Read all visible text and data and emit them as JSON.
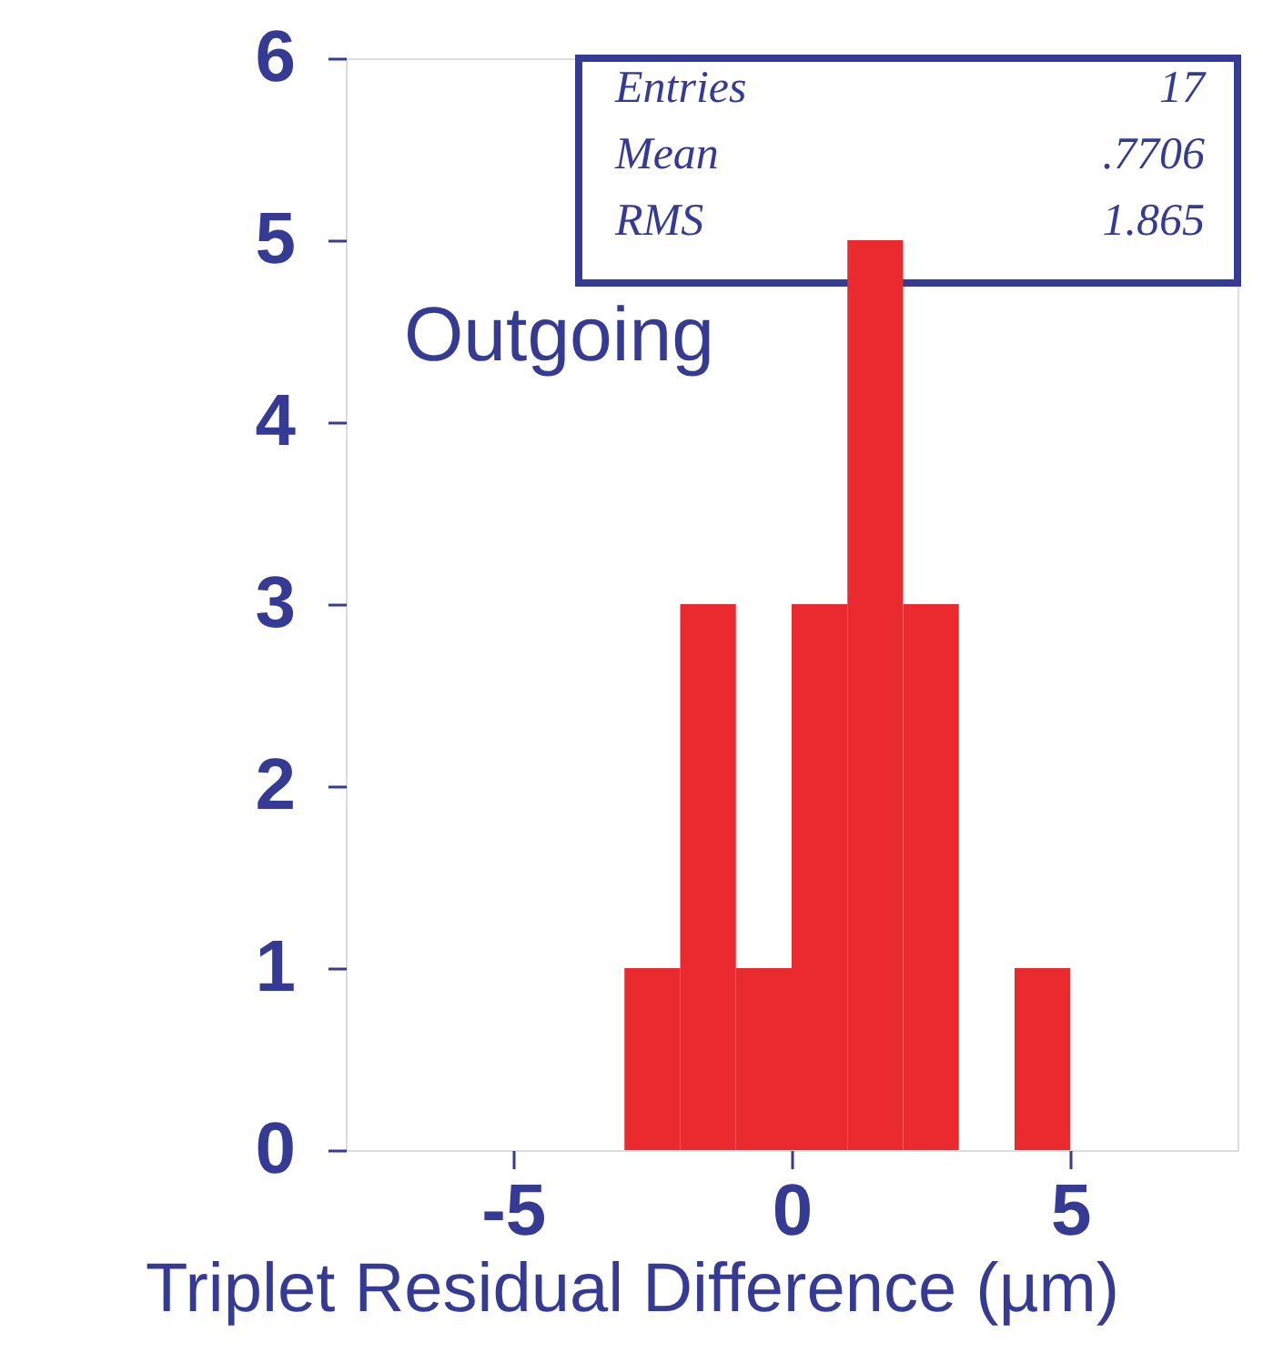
{
  "chart_data": {
    "type": "histogram",
    "xlabel": "Triplet Residual Difference (µm)",
    "bins": [
      -3,
      -2,
      -1,
      0,
      1,
      2,
      3,
      4,
      5
    ],
    "values": [
      1,
      3,
      1,
      3,
      5,
      3,
      0,
      1
    ],
    "color": "#ea2a2e",
    "xlim": [
      -8,
      8
    ],
    "xticks": [
      -5,
      0,
      5
    ],
    "ylim": [
      0,
      6
    ],
    "yticks": [
      0,
      1,
      2,
      3,
      4,
      5,
      6
    ],
    "grid": false,
    "annotations": [
      "Outgoing",
      "Entries",
      "17",
      "Mean",
      ".7706",
      "RMS",
      "1.865"
    ]
  }
}
